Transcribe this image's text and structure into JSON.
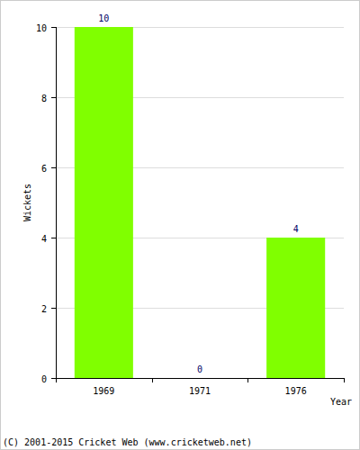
{
  "chart_data": {
    "type": "bar",
    "categories": [
      "1969",
      "1971",
      "1976"
    ],
    "values": [
      10,
      0,
      4
    ],
    "color": "#80ff00",
    "ylim": [
      0,
      10
    ],
    "yticks": [
      0,
      2,
      4,
      6,
      8,
      10
    ],
    "grid": true,
    "data_labels": true,
    "x_label": "Year",
    "y_label": "Wickets",
    "annotations": [
      "(C) 2001-2015 Cricket Web (www.cricketweb.net)"
    ]
  }
}
